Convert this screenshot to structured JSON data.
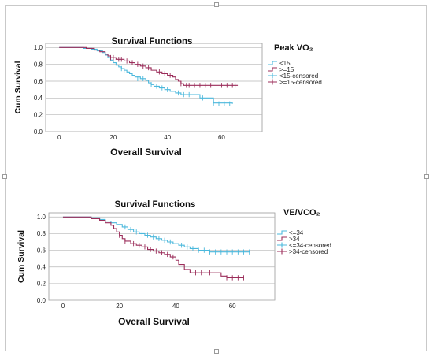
{
  "chart_data": [
    {
      "type": "line",
      "title": "Survival Functions",
      "legend_title": "Peak VO₂",
      "xlabel": "Overall Survival",
      "ylabel": "Cum Survival",
      "xlim": [
        -5,
        75
      ],
      "ylim": [
        0,
        1.05
      ],
      "xticks": [
        "0",
        "20",
        "40",
        "60"
      ],
      "yticks": [
        "0.0",
        "0.2",
        "0.4",
        "0.6",
        "0.8",
        "1.0"
      ],
      "legend_position": "right",
      "grid": "horizontal",
      "legend": [
        "<15",
        ">=15",
        "<15-censored",
        ">=15-censored"
      ],
      "series": [
        {
          "name": "<15",
          "color": "#4bb8dc",
          "steps": [
            [
              0,
              1.0
            ],
            [
              9,
              0.99
            ],
            [
              12,
              0.98
            ],
            [
              14,
              0.96
            ],
            [
              16,
              0.94
            ],
            [
              17,
              0.91
            ],
            [
              18,
              0.88
            ],
            [
              19,
              0.85
            ],
            [
              20,
              0.82
            ],
            [
              21,
              0.79
            ],
            [
              22,
              0.77
            ],
            [
              23,
              0.75
            ],
            [
              24,
              0.73
            ],
            [
              25,
              0.71
            ],
            [
              26,
              0.69
            ],
            [
              27,
              0.67
            ],
            [
              28,
              0.65
            ],
            [
              30,
              0.63
            ],
            [
              32,
              0.61
            ],
            [
              33,
              0.58
            ],
            [
              34,
              0.56
            ],
            [
              35,
              0.54
            ],
            [
              37,
              0.52
            ],
            [
              39,
              0.5
            ],
            [
              41,
              0.48
            ],
            [
              43,
              0.46
            ],
            [
              45,
              0.44
            ],
            [
              52,
              0.4
            ],
            [
              57,
              0.34
            ],
            [
              64,
              0.33
            ]
          ],
          "censored": [
            [
              23,
              0.75
            ],
            [
              24,
              0.73
            ],
            [
              28,
              0.65
            ],
            [
              29,
              0.63
            ],
            [
              31,
              0.63
            ],
            [
              34,
              0.56
            ],
            [
              36,
              0.54
            ],
            [
              38,
              0.52
            ],
            [
              40,
              0.5
            ],
            [
              44,
              0.46
            ],
            [
              46,
              0.44
            ],
            [
              48,
              0.44
            ],
            [
              53,
              0.4
            ],
            [
              57,
              0.34
            ],
            [
              59,
              0.33
            ],
            [
              61,
              0.33
            ],
            [
              63,
              0.33
            ]
          ]
        },
        {
          "name": ">=15",
          "color": "#9b2d5a",
          "steps": [
            [
              0,
              1.0
            ],
            [
              10,
              0.99
            ],
            [
              13,
              0.97
            ],
            [
              15,
              0.95
            ],
            [
              17,
              0.92
            ],
            [
              18,
              0.9
            ],
            [
              19,
              0.88
            ],
            [
              21,
              0.86
            ],
            [
              24,
              0.84
            ],
            [
              26,
              0.82
            ],
            [
              28,
              0.8
            ],
            [
              30,
              0.78
            ],
            [
              32,
              0.76
            ],
            [
              34,
              0.73
            ],
            [
              36,
              0.71
            ],
            [
              38,
              0.69
            ],
            [
              40,
              0.67
            ],
            [
              42,
              0.65
            ],
            [
              43,
              0.62
            ],
            [
              44,
              0.6
            ],
            [
              45,
              0.57
            ],
            [
              46,
              0.55
            ],
            [
              66,
              0.55
            ]
          ],
          "censored": [
            [
              19,
              0.88
            ],
            [
              20,
              0.88
            ],
            [
              22,
              0.86
            ],
            [
              23,
              0.86
            ],
            [
              25,
              0.84
            ],
            [
              27,
              0.82
            ],
            [
              29,
              0.8
            ],
            [
              31,
              0.78
            ],
            [
              33,
              0.76
            ],
            [
              35,
              0.73
            ],
            [
              37,
              0.71
            ],
            [
              39,
              0.69
            ],
            [
              41,
              0.67
            ],
            [
              45,
              0.57
            ],
            [
              47,
              0.55
            ],
            [
              48,
              0.55
            ],
            [
              50,
              0.55
            ],
            [
              52,
              0.55
            ],
            [
              54,
              0.55
            ],
            [
              56,
              0.55
            ],
            [
              58,
              0.55
            ],
            [
              60,
              0.55
            ],
            [
              62,
              0.55
            ],
            [
              64,
              0.55
            ],
            [
              65,
              0.55
            ]
          ]
        }
      ]
    },
    {
      "type": "line",
      "title": "Survival Functions",
      "legend_title": "VE/VCO₂",
      "xlabel": "Overall Survival",
      "ylabel": "Cum Survival",
      "xlim": [
        -5,
        75
      ],
      "ylim": [
        0,
        1.05
      ],
      "xticks": [
        "0",
        "20",
        "40",
        "60"
      ],
      "yticks": [
        "0.0",
        "0.2",
        "0.4",
        "0.6",
        "0.8",
        "1.0"
      ],
      "legend_position": "right",
      "grid": "horizontal",
      "legend": [
        "<=34",
        ">34",
        "<=34-censored",
        ">34-censored"
      ],
      "series": [
        {
          "name": "<=34",
          "color": "#4bb8dc",
          "steps": [
            [
              0,
              1.0
            ],
            [
              10,
              0.99
            ],
            [
              13,
              0.97
            ],
            [
              15,
              0.95
            ],
            [
              17,
              0.93
            ],
            [
              19,
              0.91
            ],
            [
              21,
              0.88
            ],
            [
              23,
              0.85
            ],
            [
              25,
              0.82
            ],
            [
              27,
              0.8
            ],
            [
              29,
              0.78
            ],
            [
              31,
              0.76
            ],
            [
              33,
              0.74
            ],
            [
              35,
              0.72
            ],
            [
              37,
              0.7
            ],
            [
              39,
              0.68
            ],
            [
              41,
              0.66
            ],
            [
              43,
              0.64
            ],
            [
              45,
              0.62
            ],
            [
              48,
              0.6
            ],
            [
              52,
              0.58
            ],
            [
              66,
              0.58
            ]
          ],
          "censored": [
            [
              22,
              0.88
            ],
            [
              24,
              0.85
            ],
            [
              26,
              0.82
            ],
            [
              28,
              0.8
            ],
            [
              30,
              0.78
            ],
            [
              32,
              0.76
            ],
            [
              34,
              0.74
            ],
            [
              36,
              0.72
            ],
            [
              38,
              0.7
            ],
            [
              40,
              0.68
            ],
            [
              42,
              0.66
            ],
            [
              44,
              0.64
            ],
            [
              46,
              0.62
            ],
            [
              48,
              0.6
            ],
            [
              50,
              0.6
            ],
            [
              52,
              0.58
            ],
            [
              54,
              0.58
            ],
            [
              56,
              0.58
            ],
            [
              58,
              0.58
            ],
            [
              60,
              0.58
            ],
            [
              62,
              0.58
            ],
            [
              64,
              0.58
            ],
            [
              66,
              0.58
            ]
          ]
        },
        {
          "name": ">34",
          "color": "#9b2d5a",
          "steps": [
            [
              0,
              1.0
            ],
            [
              10,
              0.98
            ],
            [
              13,
              0.96
            ],
            [
              15,
              0.93
            ],
            [
              17,
              0.9
            ],
            [
              18,
              0.86
            ],
            [
              19,
              0.82
            ],
            [
              20,
              0.78
            ],
            [
              21,
              0.74
            ],
            [
              22,
              0.71
            ],
            [
              24,
              0.68
            ],
            [
              26,
              0.66
            ],
            [
              28,
              0.64
            ],
            [
              30,
              0.61
            ],
            [
              32,
              0.59
            ],
            [
              34,
              0.57
            ],
            [
              36,
              0.55
            ],
            [
              38,
              0.52
            ],
            [
              40,
              0.48
            ],
            [
              41,
              0.43
            ],
            [
              43,
              0.37
            ],
            [
              45,
              0.33
            ],
            [
              56,
              0.29
            ],
            [
              58,
              0.27
            ],
            [
              64,
              0.27
            ]
          ],
          "censored": [
            [
              20,
              0.78
            ],
            [
              22,
              0.71
            ],
            [
              25,
              0.68
            ],
            [
              27,
              0.66
            ],
            [
              29,
              0.64
            ],
            [
              31,
              0.61
            ],
            [
              33,
              0.59
            ],
            [
              35,
              0.57
            ],
            [
              37,
              0.55
            ],
            [
              39,
              0.52
            ],
            [
              47,
              0.33
            ],
            [
              49,
              0.33
            ],
            [
              52,
              0.33
            ],
            [
              58,
              0.27
            ],
            [
              60,
              0.27
            ],
            [
              62,
              0.27
            ],
            [
              64,
              0.27
            ]
          ]
        }
      ]
    }
  ]
}
